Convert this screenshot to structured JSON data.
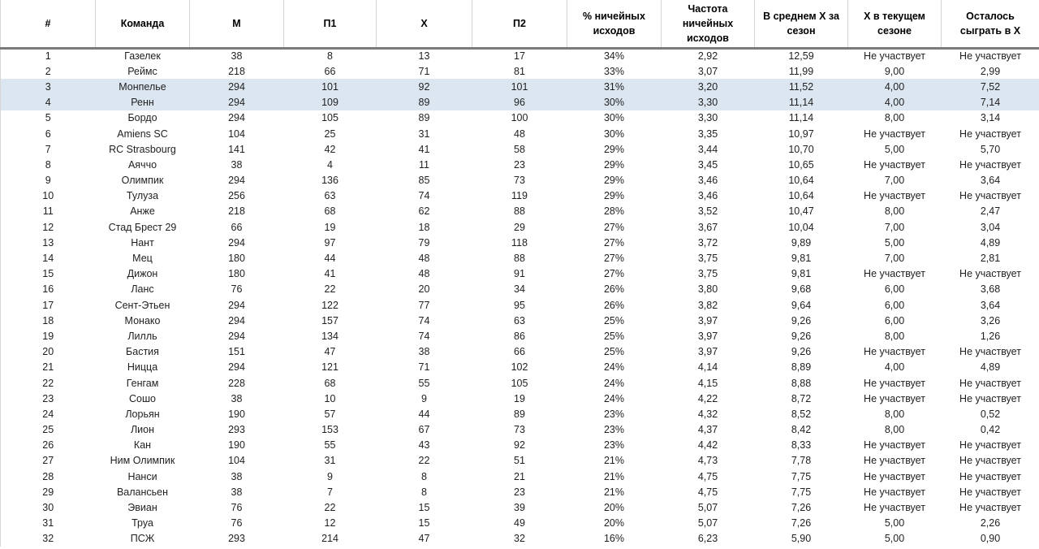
{
  "table": {
    "columns": [
      "#",
      "Команда",
      "М",
      "П1",
      "Х",
      "П2",
      "% ничейных исходов",
      "Частота ничейных исходов",
      "В среднем Х за сезон",
      "Х в текущем сезоне",
      "Осталось сыграть в Х"
    ],
    "highlighted_row_indices": [
      2,
      3
    ],
    "highlight_color": "#dce6f1",
    "header_border_color": "#7b7b7b",
    "not_participating_label": "Не участвует",
    "rows": [
      [
        "1",
        "Газелек",
        "38",
        "8",
        "13",
        "17",
        "34%",
        "2,92",
        "12,59",
        "Не участвует",
        "Не участвует"
      ],
      [
        "2",
        "Реймс",
        "218",
        "66",
        "71",
        "81",
        "33%",
        "3,07",
        "11,99",
        "9,00",
        "2,99"
      ],
      [
        "3",
        "Монпелье",
        "294",
        "101",
        "92",
        "101",
        "31%",
        "3,20",
        "11,52",
        "4,00",
        "7,52"
      ],
      [
        "4",
        "Ренн",
        "294",
        "109",
        "89",
        "96",
        "30%",
        "3,30",
        "11,14",
        "4,00",
        "7,14"
      ],
      [
        "5",
        "Бордо",
        "294",
        "105",
        "89",
        "100",
        "30%",
        "3,30",
        "11,14",
        "8,00",
        "3,14"
      ],
      [
        "6",
        "Amiens SC",
        "104",
        "25",
        "31",
        "48",
        "30%",
        "3,35",
        "10,97",
        "Не участвует",
        "Не участвует"
      ],
      [
        "7",
        "RC Strasbourg",
        "141",
        "42",
        "41",
        "58",
        "29%",
        "3,44",
        "10,70",
        "5,00",
        "5,70"
      ],
      [
        "8",
        "Аяччо",
        "38",
        "4",
        "11",
        "23",
        "29%",
        "3,45",
        "10,65",
        "Не участвует",
        "Не участвует"
      ],
      [
        "9",
        "Олимпик",
        "294",
        "136",
        "85",
        "73",
        "29%",
        "3,46",
        "10,64",
        "7,00",
        "3,64"
      ],
      [
        "10",
        "Тулуза",
        "256",
        "63",
        "74",
        "119",
        "29%",
        "3,46",
        "10,64",
        "Не участвует",
        "Не участвует"
      ],
      [
        "11",
        "Анже",
        "218",
        "68",
        "62",
        "88",
        "28%",
        "3,52",
        "10,47",
        "8,00",
        "2,47"
      ],
      [
        "12",
        "Стад Брест 29",
        "66",
        "19",
        "18",
        "29",
        "27%",
        "3,67",
        "10,04",
        "7,00",
        "3,04"
      ],
      [
        "13",
        "Нант",
        "294",
        "97",
        "79",
        "118",
        "27%",
        "3,72",
        "9,89",
        "5,00",
        "4,89"
      ],
      [
        "14",
        "Мец",
        "180",
        "44",
        "48",
        "88",
        "27%",
        "3,75",
        "9,81",
        "7,00",
        "2,81"
      ],
      [
        "15",
        "Дижон",
        "180",
        "41",
        "48",
        "91",
        "27%",
        "3,75",
        "9,81",
        "Не участвует",
        "Не участвует"
      ],
      [
        "16",
        "Ланс",
        "76",
        "22",
        "20",
        "34",
        "26%",
        "3,80",
        "9,68",
        "6,00",
        "3,68"
      ],
      [
        "17",
        "Сент-Этьен",
        "294",
        "122",
        "77",
        "95",
        "26%",
        "3,82",
        "9,64",
        "6,00",
        "3,64"
      ],
      [
        "18",
        "Монако",
        "294",
        "157",
        "74",
        "63",
        "25%",
        "3,97",
        "9,26",
        "6,00",
        "3,26"
      ],
      [
        "19",
        "Лилль",
        "294",
        "134",
        "74",
        "86",
        "25%",
        "3,97",
        "9,26",
        "8,00",
        "1,26"
      ],
      [
        "20",
        "Бастия",
        "151",
        "47",
        "38",
        "66",
        "25%",
        "3,97",
        "9,26",
        "Не участвует",
        "Не участвует"
      ],
      [
        "21",
        "Ницца",
        "294",
        "121",
        "71",
        "102",
        "24%",
        "4,14",
        "8,89",
        "4,00",
        "4,89"
      ],
      [
        "22",
        "Генгам",
        "228",
        "68",
        "55",
        "105",
        "24%",
        "4,15",
        "8,88",
        "Не участвует",
        "Не участвует"
      ],
      [
        "23",
        "Сошо",
        "38",
        "10",
        "9",
        "19",
        "24%",
        "4,22",
        "8,72",
        "Не участвует",
        "Не участвует"
      ],
      [
        "24",
        "Лорьян",
        "190",
        "57",
        "44",
        "89",
        "23%",
        "4,32",
        "8,52",
        "8,00",
        "0,52"
      ],
      [
        "25",
        "Лион",
        "293",
        "153",
        "67",
        "73",
        "23%",
        "4,37",
        "8,42",
        "8,00",
        "0,42"
      ],
      [
        "26",
        "Кан",
        "190",
        "55",
        "43",
        "92",
        "23%",
        "4,42",
        "8,33",
        "Не участвует",
        "Не участвует"
      ],
      [
        "27",
        "Ним Олимпик",
        "104",
        "31",
        "22",
        "51",
        "21%",
        "4,73",
        "7,78",
        "Не участвует",
        "Не участвует"
      ],
      [
        "28",
        "Нанси",
        "38",
        "9",
        "8",
        "21",
        "21%",
        "4,75",
        "7,75",
        "Не участвует",
        "Не участвует"
      ],
      [
        "29",
        "Валансьен",
        "38",
        "7",
        "8",
        "23",
        "21%",
        "4,75",
        "7,75",
        "Не участвует",
        "Не участвует"
      ],
      [
        "30",
        "Эвиан",
        "76",
        "22",
        "15",
        "39",
        "20%",
        "5,07",
        "7,26",
        "Не участвует",
        "Не участвует"
      ],
      [
        "31",
        "Труа",
        "76",
        "12",
        "15",
        "49",
        "20%",
        "5,07",
        "7,26",
        "5,00",
        "2,26"
      ],
      [
        "32",
        "ПСЖ",
        "293",
        "214",
        "47",
        "32",
        "16%",
        "6,23",
        "5,90",
        "5,00",
        "0,90"
      ]
    ]
  }
}
